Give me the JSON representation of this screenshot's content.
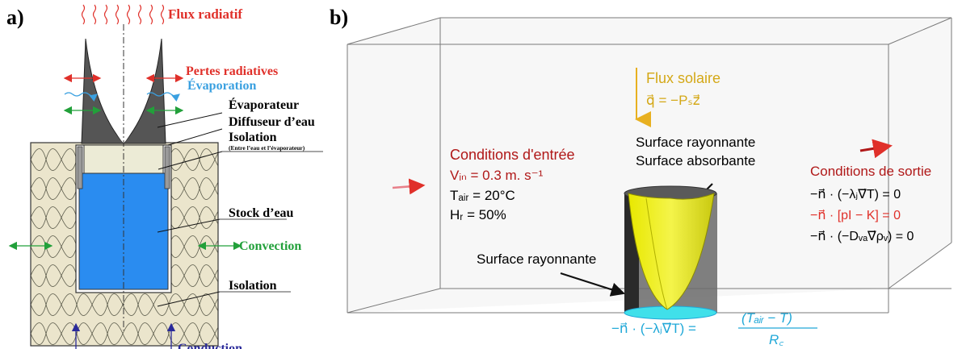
{
  "panel_a": {
    "label": "a)",
    "flux_radiatif": "Flux radiatif",
    "pertes_radiatives": "Pertes radiatives",
    "evaporation": "Évaporation",
    "evaporateur": "Évaporateur",
    "diffuseur": "Diffuseur d’eau",
    "isolation_top": "Isolation",
    "isolation_note": "(Entre l’eau et l’évaporateur)",
    "stock": "Stock d’eau",
    "convection": "Convection",
    "isolation_bottom": "Isolation",
    "conduction": "Conduction"
  },
  "panel_b": {
    "label": "b)",
    "flux_solaire": "Flux solaire",
    "flux_solaire_eq": "q⃗ = −Pₛz⃗",
    "surface_rayonnante_top": "Surface rayonnante",
    "surface_absorbante": "Surface absorbante",
    "surface_rayonnante_bottom": "Surface rayonnante",
    "inlet": {
      "title": "Conditions d'entrée",
      "v_in": "Vᵢₙ = 0.3 m. s⁻¹",
      "t_air": "Tₐᵢᵣ = 20°C",
      "h_r": "Hᵣ = 50%"
    },
    "outlet": {
      "title": "Conditions de sortie",
      "eq1": "−n⃗ · (−λⱼ∇⃗T) = 0",
      "eq2": "−n⃗ · [pI − K] = 0",
      "eq3": "−n⃗ · (−Dᵥₐ∇⃗ρᵥ) = 0"
    },
    "bottom_eq_left": "−n⃗ · (−λⱼ∇⃗T) =",
    "bottom_eq_num": "(Tₐᵢᵣ − T)",
    "bottom_eq_den": "R꜀"
  },
  "colors": {
    "red": "#e0302a",
    "blue": "#3aa0e0",
    "green": "#22a03a",
    "dark_red": "#b01818",
    "gold": "#d4a817",
    "cyan": "#20a8d8",
    "navy": "#2a2a9a",
    "insulation": "#e8e2c8",
    "water": "#2a8cf0",
    "evaporator": "#555555"
  }
}
